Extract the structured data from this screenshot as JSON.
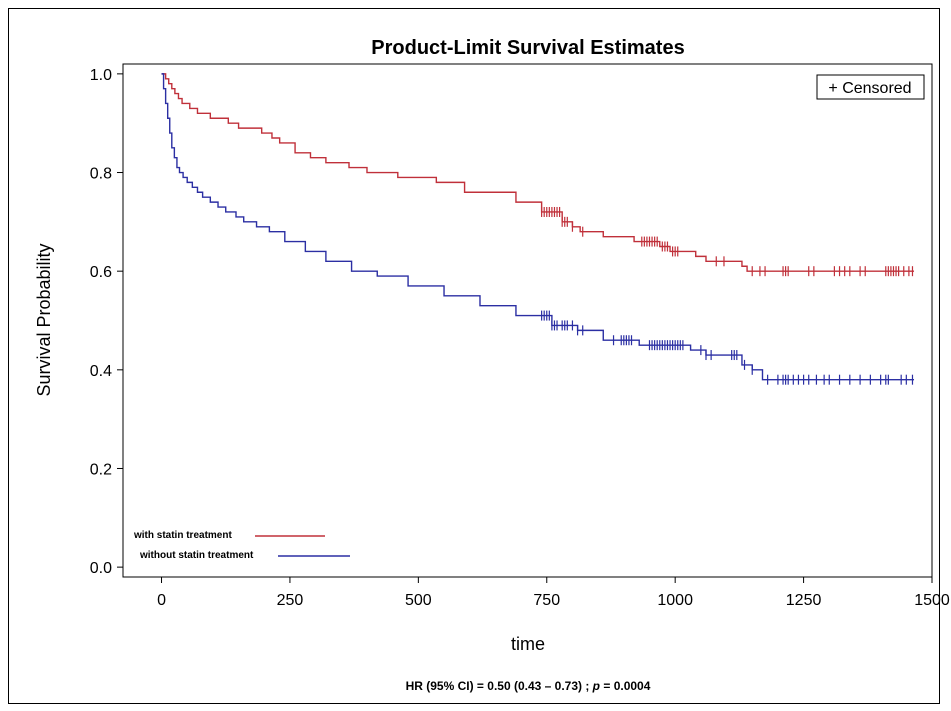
{
  "chart_data": {
    "type": "line",
    "step": true,
    "title": "Product-Limit Survival Estimates",
    "xlabel": "time",
    "ylabel": "Survival Probability",
    "xlim": [
      -75,
      1500
    ],
    "ylim": [
      -0.02,
      1.02
    ],
    "xticks": [
      0,
      250,
      500,
      750,
      1000,
      1250,
      1500
    ],
    "xtick_labels": [
      "0",
      "250",
      "500",
      "750",
      "1000",
      "1250",
      "1500"
    ],
    "yticks": [
      0.0,
      0.2,
      0.4,
      0.6,
      0.8,
      1.0
    ],
    "ytick_labels": [
      "0.0",
      "0.2",
      "0.4",
      "0.6",
      "0.8",
      "1.0"
    ],
    "grid": false,
    "legend_box": {
      "text": "+ Censored",
      "position": "top-right"
    },
    "series": [
      {
        "name": "with statin treatment",
        "color": "#c0303a",
        "x": [
          0,
          8,
          14,
          20,
          26,
          33,
          40,
          55,
          70,
          95,
          130,
          150,
          195,
          215,
          230,
          260,
          290,
          320,
          365,
          400,
          460,
          535,
          590,
          690,
          740,
          780,
          800,
          815,
          860,
          920,
          970,
          990,
          1040,
          1060,
          1130,
          1140,
          1465
        ],
        "y": [
          1.0,
          0.99,
          0.98,
          0.97,
          0.96,
          0.95,
          0.94,
          0.93,
          0.92,
          0.91,
          0.9,
          0.89,
          0.88,
          0.87,
          0.86,
          0.84,
          0.83,
          0.82,
          0.81,
          0.8,
          0.79,
          0.78,
          0.76,
          0.74,
          0.72,
          0.7,
          0.69,
          0.68,
          0.67,
          0.66,
          0.65,
          0.64,
          0.63,
          0.62,
          0.61,
          0.6,
          0.6
        ],
        "censored": [
          740,
          745,
          750,
          755,
          760,
          765,
          770,
          775,
          780,
          785,
          790,
          800,
          820,
          935,
          940,
          945,
          950,
          955,
          960,
          965,
          975,
          980,
          985,
          995,
          1000,
          1005,
          1080,
          1095,
          1150,
          1165,
          1175,
          1210,
          1215,
          1220,
          1260,
          1270,
          1310,
          1320,
          1330,
          1340,
          1360,
          1370,
          1410,
          1415,
          1420,
          1425,
          1430,
          1435,
          1445,
          1455,
          1462
        ]
      },
      {
        "name": "without statin treatment",
        "color": "#2b2fa3",
        "x": [
          0,
          4,
          8,
          12,
          16,
          20,
          25,
          30,
          35,
          42,
          50,
          60,
          70,
          80,
          95,
          110,
          125,
          145,
          160,
          185,
          210,
          240,
          280,
          320,
          370,
          420,
          480,
          550,
          620,
          690,
          760,
          810,
          860,
          930,
          1030,
          1060,
          1130,
          1150,
          1170,
          1465
        ],
        "y": [
          1.0,
          0.97,
          0.94,
          0.91,
          0.88,
          0.85,
          0.83,
          0.81,
          0.8,
          0.79,
          0.78,
          0.77,
          0.76,
          0.75,
          0.74,
          0.73,
          0.72,
          0.71,
          0.7,
          0.69,
          0.68,
          0.66,
          0.64,
          0.62,
          0.6,
          0.59,
          0.57,
          0.55,
          0.53,
          0.51,
          0.49,
          0.48,
          0.46,
          0.45,
          0.44,
          0.43,
          0.41,
          0.4,
          0.38,
          0.38
        ],
        "censored": [
          740,
          745,
          750,
          755,
          760,
          765,
          770,
          780,
          785,
          790,
          800,
          810,
          820,
          880,
          895,
          900,
          905,
          910,
          915,
          950,
          955,
          960,
          965,
          970,
          975,
          980,
          985,
          990,
          995,
          1000,
          1005,
          1010,
          1015,
          1050,
          1060,
          1070,
          1110,
          1115,
          1120,
          1135,
          1150,
          1180,
          1200,
          1210,
          1215,
          1220,
          1230,
          1240,
          1250,
          1260,
          1275,
          1290,
          1300,
          1320,
          1340,
          1360,
          1380,
          1400,
          1410,
          1415,
          1440,
          1450,
          1462
        ]
      }
    ],
    "legend_entries": [
      "with statin treatment",
      "without statin treatment"
    ]
  },
  "footnote": {
    "prefix": "HR (95%  CI) = 0.50 (0.43 – 0.73) ; ",
    "p_symbol": "p",
    "suffix": " = 0.0004"
  }
}
